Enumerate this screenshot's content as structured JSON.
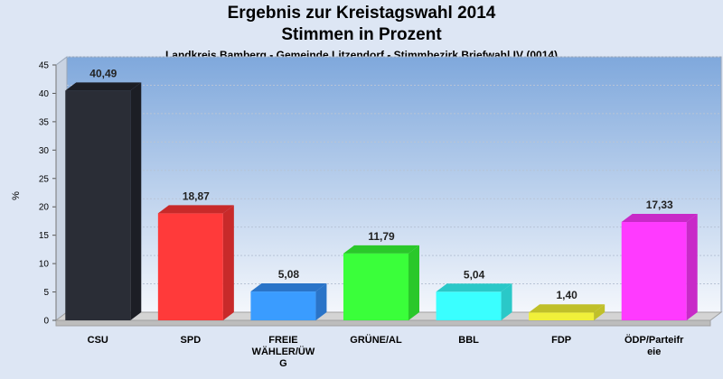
{
  "chart_data": {
    "type": "bar",
    "title": "Ergebnis zur Kreistagswahl 2014",
    "subtitle": "Stimmen in Prozent",
    "subsubtitle": "Landkreis Bamberg - Gemeinde Litzendorf - Stimmbezirk Briefwahl IV (0014)",
    "ylabel": "%",
    "xlabel": "",
    "ylim": [
      0,
      45
    ],
    "yticks": [
      0,
      5,
      10,
      15,
      20,
      25,
      30,
      35,
      40,
      45
    ],
    "grid": true,
    "categories": [
      "CSU",
      "SPD",
      "FREIE WÄHLER/ÜWG",
      "GRÜNE/AL",
      "BBL",
      "FDP",
      "ÖDP/Parteifreie"
    ],
    "category_lines": [
      [
        "CSU"
      ],
      [
        "SPD"
      ],
      [
        "FREIE",
        "WÄHLER/ÜW",
        "G"
      ],
      [
        "GRÜNE/AL"
      ],
      [
        "BBL"
      ],
      [
        "FDP"
      ],
      [
        "ÖDP/Parteifr",
        "eie"
      ]
    ],
    "values": [
      40.49,
      18.87,
      5.08,
      11.79,
      5.04,
      1.4,
      17.33
    ],
    "value_labels": [
      "40,49",
      "18,87",
      "5,08",
      "11,79",
      "5,04",
      "1,40",
      "17,33"
    ],
    "colors": [
      "#2a2d36",
      "#ff3a3a",
      "#3a9cff",
      "#3aff3a",
      "#3affff",
      "#f0f03a",
      "#ff3aff"
    ],
    "side_colors": [
      "#1c1e25",
      "#c82a2a",
      "#2a74c8",
      "#2ac82a",
      "#2ac8c8",
      "#c0c02a",
      "#c82ac8"
    ]
  }
}
